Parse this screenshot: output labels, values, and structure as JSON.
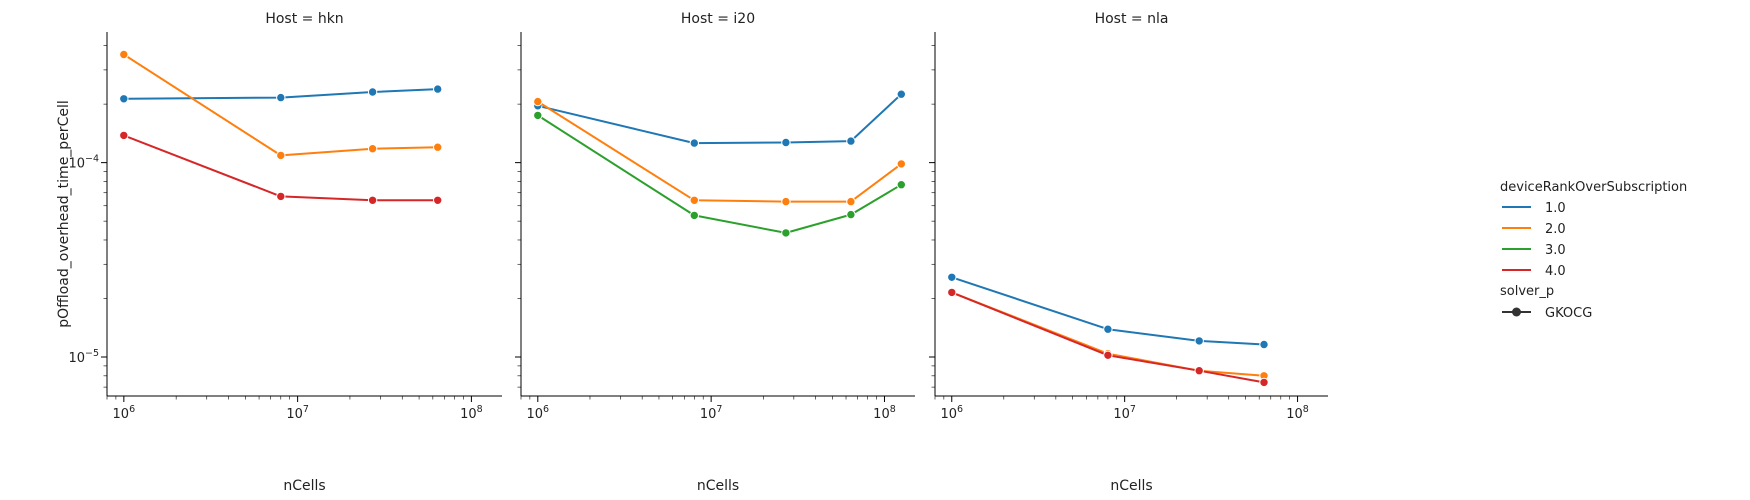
{
  "chart_data": {
    "type": "line",
    "y_scale": "log",
    "x_scale": "log",
    "xlabel": "nCells",
    "ylabel": "pOffload_overhead_time_perCell",
    "xlim": [
      800000,
      150000000
    ],
    "ylim": [
      6.3e-06,
      0.00047
    ],
    "x_ticks": [
      {
        "value": 1000000,
        "base": "10",
        "exp": "6"
      },
      {
        "value": 10000000,
        "base": "10",
        "exp": "7"
      },
      {
        "value": 100000000,
        "base": "10",
        "exp": "8"
      }
    ],
    "y_ticks": [
      {
        "value": 1e-05,
        "base": "10",
        "exp": "−5"
      },
      {
        "value": 0.0001,
        "base": "10",
        "exp": "−4"
      }
    ],
    "hue_title": "deviceRankOverSubscription",
    "style_title": "solver_p",
    "style_entries": [
      "GKOCG"
    ],
    "series_colors": [
      "#1f77b4",
      "#ff7f0e",
      "#2ca02c",
      "#d62728"
    ],
    "panels": [
      {
        "title": "Host = hkn",
        "series": [
          {
            "name": "1.0",
            "x": [
              1000000,
              8000000,
              27000000,
              64000000
            ],
            "y": [
              0.000213,
              0.000216,
              0.000231,
              0.000239
            ]
          },
          {
            "name": "2.0",
            "x": [
              1000000,
              8000000,
              27000000,
              64000000
            ],
            "y": [
              0.00036,
              0.000109,
              0.000118,
              0.00012
            ]
          },
          {
            "name": "4.0",
            "x": [
              1000000,
              8000000,
              27000000,
              64000000
            ],
            "y": [
              0.000138,
              6.7e-05,
              6.4e-05,
              6.4e-05
            ]
          }
        ]
      },
      {
        "title": "Host = i20",
        "series": [
          {
            "name": "1.0",
            "x": [
              1000000,
              8000000,
              27000000,
              64000000,
              125000000
            ],
            "y": [
              0.000196,
              0.000126,
              0.000127,
              0.000129,
              0.000225
            ]
          },
          {
            "name": "2.0",
            "x": [
              1000000,
              8000000,
              27000000,
              64000000,
              125000000
            ],
            "y": [
              0.000206,
              6.4e-05,
              6.3e-05,
              6.3e-05,
              9.85e-05
            ]
          },
          {
            "name": "3.0",
            "x": [
              1000000,
              8000000,
              27000000,
              64000000,
              125000000
            ],
            "y": [
              0.000175,
              5.35e-05,
              4.35e-05,
              5.4e-05,
              7.7e-05
            ]
          }
        ]
      },
      {
        "title": "Host = nla",
        "series": [
          {
            "name": "1.0",
            "x": [
              1000000,
              8000000,
              27000000,
              64000000
            ],
            "y": [
              2.57e-05,
              1.39e-05,
              1.21e-05,
              1.16e-05
            ]
          },
          {
            "name": "2.0",
            "x": [
              1000000,
              8000000,
              27000000,
              64000000
            ],
            "y": [
              2.15e-05,
              1.04e-05,
              8.5e-06,
              8e-06
            ]
          },
          {
            "name": "4.0",
            "x": [
              1000000,
              8000000,
              27000000,
              64000000
            ],
            "y": [
              2.15e-05,
              1.02e-05,
              8.5e-06,
              7.4e-06
            ]
          }
        ]
      }
    ],
    "legend": [
      {
        "label": "1.0",
        "color": "#1f77b4"
      },
      {
        "label": "2.0",
        "color": "#ff7f0e"
      },
      {
        "label": "3.0",
        "color": "#2ca02c"
      },
      {
        "label": "4.0",
        "color": "#d62728"
      }
    ],
    "legend_position": "right"
  }
}
